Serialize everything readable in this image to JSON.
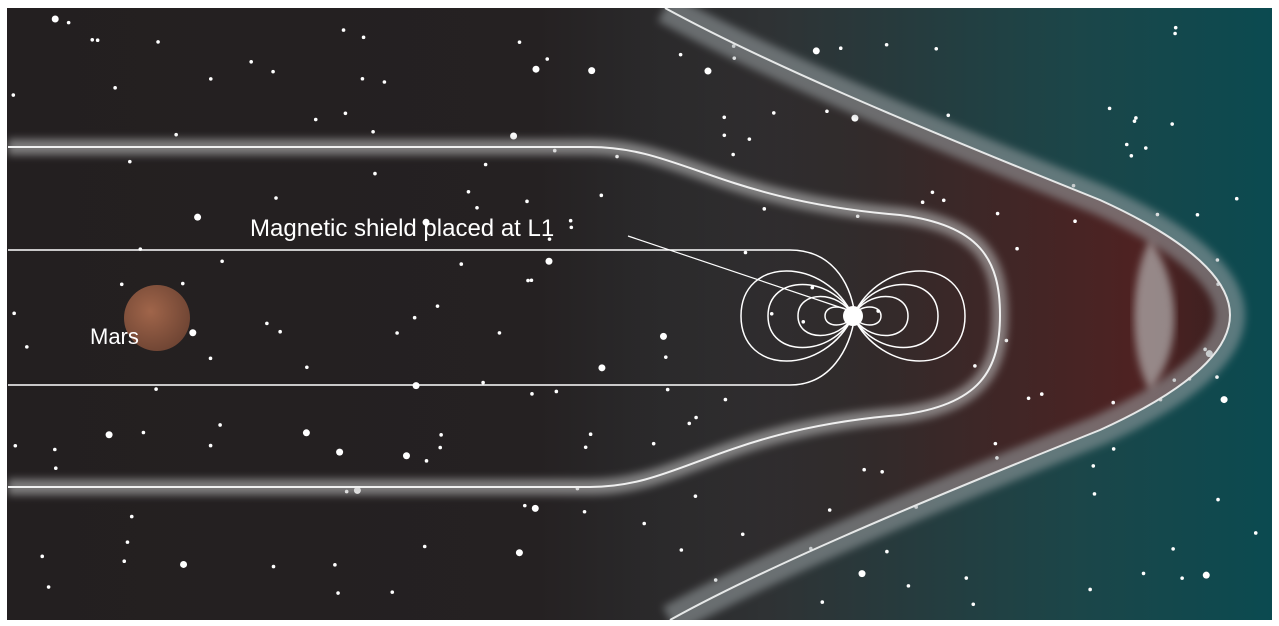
{
  "labels": {
    "shield": "Magnetic shield placed at L1",
    "planet": "Mars"
  }
}
